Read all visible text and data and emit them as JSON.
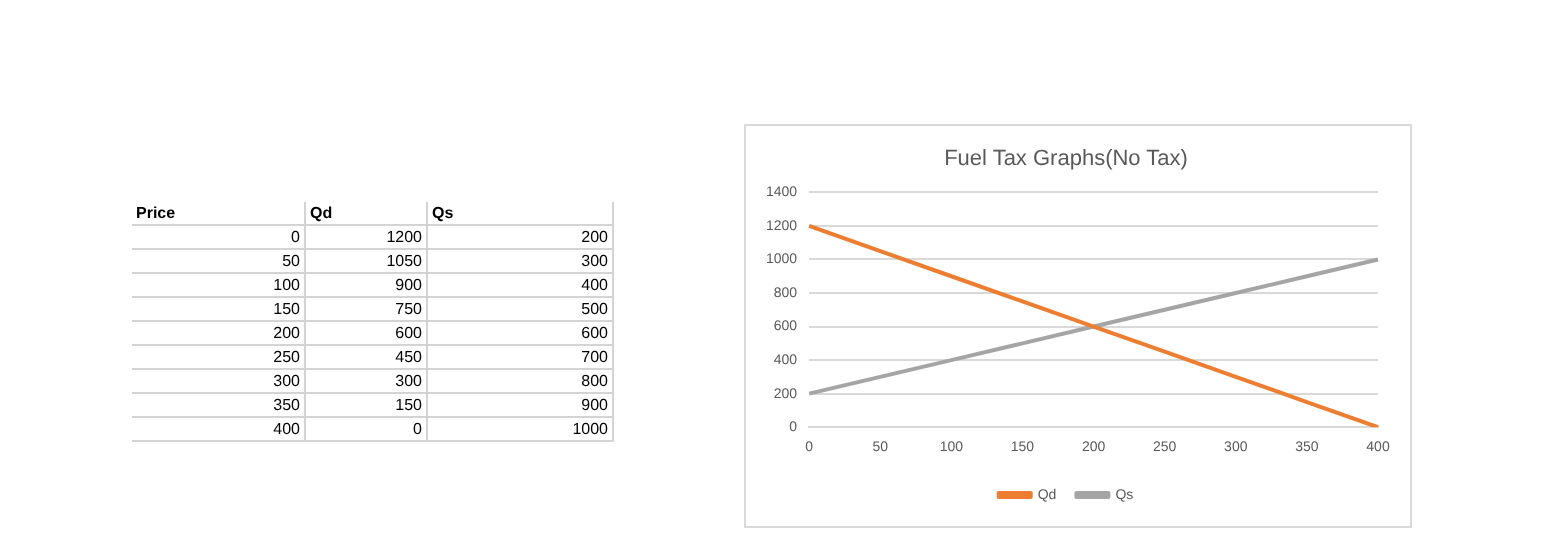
{
  "chart_data": {
    "type": "line",
    "title": "Fuel Tax Graphs(No Tax)",
    "categories": [
      "0",
      "50",
      "100",
      "150",
      "200",
      "250",
      "300",
      "350",
      "400"
    ],
    "series": [
      {
        "name": "Qd",
        "color": "#ed7d31",
        "values": [
          1200,
          1050,
          900,
          750,
          600,
          450,
          300,
          150,
          0
        ]
      },
      {
        "name": "Qs",
        "color": "#a5a5a5",
        "values": [
          200,
          300,
          400,
          500,
          600,
          700,
          800,
          900,
          1000
        ]
      }
    ],
    "ylim": [
      0,
      1400
    ],
    "yticks": [
      0,
      200,
      400,
      600,
      800,
      1000,
      1200,
      1400
    ],
    "grid": "y",
    "legend": "bottom",
    "marker": "none",
    "line_style": "solid",
    "annotations": [
      "Price",
      "Qd",
      "Qs",
      "0",
      "1200",
      "200",
      "50",
      "1050",
      "300",
      "100",
      "900",
      "400",
      "150",
      "750",
      "500",
      "200",
      "600",
      "600",
      "250",
      "450",
      "700",
      "300",
      "300",
      "800",
      "350",
      "150",
      "900",
      "400",
      "0",
      "1000"
    ]
  }
}
